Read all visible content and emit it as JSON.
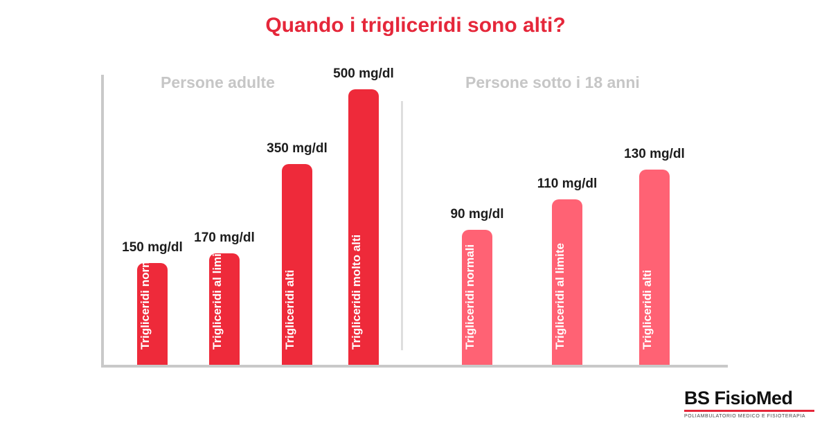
{
  "title": "Quando i trigliceridi sono alti?",
  "colors": {
    "title": "#e5273a",
    "adults_bar": "#ee2a3a",
    "under18_bar": "#ff6274"
  },
  "chart_data": {
    "type": "bar",
    "groups": [
      {
        "name": "Persone adulte",
        "color": "#ee2a3a",
        "categories": [
          "Trigliceridi normali",
          "Trigliceridi al limite",
          "Trigliceridi alti",
          "Trigliceridi molto alti"
        ],
        "values": [
          150,
          170,
          350,
          500
        ],
        "value_labels": [
          "150 mg/dl",
          "170 mg/dl",
          "350 mg/dl",
          "500 mg/dl"
        ]
      },
      {
        "name": "Persone sotto i 18 anni",
        "color": "#ff6274",
        "categories": [
          "Trigliceridi normali",
          "Trigliceridi al limite",
          "Trigliceridi alti"
        ],
        "values": [
          90,
          110,
          130
        ],
        "value_labels": [
          "90 mg/dl",
          "110 mg/dl",
          "130 mg/dl"
        ]
      }
    ],
    "unit": "mg/dl",
    "grid": false,
    "legend": "none"
  },
  "logo": {
    "name": "BS FisioMed",
    "subtitle": "POLIAMBULATORIO MEDICO E FISIOTERAPIA"
  }
}
